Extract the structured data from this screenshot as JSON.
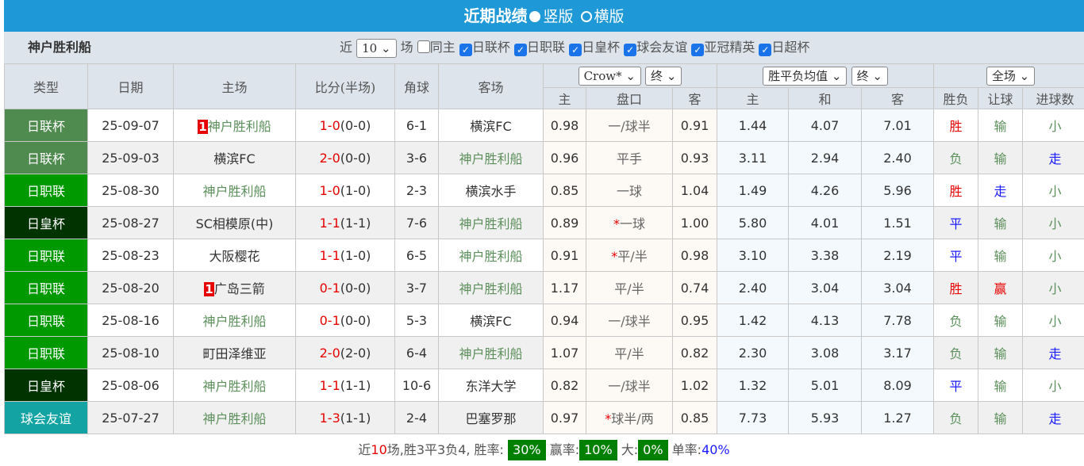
{
  "header": {
    "title": "近期战绩",
    "option_vertical": "竖版",
    "option_horizontal": "横版"
  },
  "filter": {
    "team": "神户胜利船",
    "near_label": "近",
    "count": "10",
    "games_label": "场",
    "checks": [
      {
        "label": "同主",
        "checked": false
      },
      {
        "label": "日联杯",
        "checked": true
      },
      {
        "label": "日职联",
        "checked": true
      },
      {
        "label": "日皇杯",
        "checked": true
      },
      {
        "label": "球会友谊",
        "checked": true
      },
      {
        "label": "亚冠精英",
        "checked": true
      },
      {
        "label": "日超杯",
        "checked": true
      }
    ]
  },
  "columns": {
    "type": "类型",
    "date": "日期",
    "home": "主场",
    "score": "比分(半场)",
    "corner": "角球",
    "away": "客场",
    "company_select": "Crow*",
    "final_select1": "终",
    "avg_select": "胜平负均值",
    "final_select2": "终",
    "period_select": "全场",
    "sub": [
      "主",
      "盘口",
      "客",
      "主",
      "和",
      "客",
      "胜负",
      "让球",
      "进球数"
    ]
  },
  "colors": {
    "日联杯": "#4f8a4f",
    "日职联": "#009a00",
    "日皇杯": "#003300",
    "球会友谊": "#13a3a3",
    "win": "#e60000",
    "draw": "#1a1aff",
    "loss": "#5c8f5c"
  },
  "rows": [
    {
      "type": "日联杯",
      "date": "25-09-07",
      "home": "神户胜利船",
      "home_tag": "1",
      "score": "1-0",
      "half": "(0-0)",
      "corner": "6-1",
      "away": "横滨FC",
      "o1": "0.98",
      "hcp": "一/球半",
      "star": false,
      "o2": "0.91",
      "e1": "1.44",
      "e2": "4.07",
      "e3": "7.01",
      "r": "胜",
      "rh": "输",
      "g": "小"
    },
    {
      "type": "日联杯",
      "date": "25-09-03",
      "home": "横滨FC",
      "score": "2-0",
      "half": "(0-0)",
      "corner": "3-6",
      "away": "神户胜利船",
      "o1": "0.96",
      "hcp": "平手",
      "star": false,
      "o2": "0.93",
      "e1": "3.11",
      "e2": "2.94",
      "e3": "2.40",
      "r": "负",
      "rh": "输",
      "g": "走"
    },
    {
      "type": "日职联",
      "date": "25-08-30",
      "home": "神户胜利船",
      "score": "1-0",
      "half": "(1-0)",
      "corner": "2-3",
      "away": "横滨水手",
      "o1": "0.85",
      "hcp": "一球",
      "star": false,
      "o2": "1.04",
      "e1": "1.49",
      "e2": "4.26",
      "e3": "5.96",
      "r": "胜",
      "rh": "走",
      "g": "小"
    },
    {
      "type": "日皇杯",
      "date": "25-08-27",
      "home": "SC相模原(中)",
      "score": "1-1",
      "half": "(1-1)",
      "corner": "7-6",
      "away": "神户胜利船",
      "o1": "0.89",
      "hcp": "一球",
      "star": true,
      "o2": "1.00",
      "e1": "5.80",
      "e2": "4.01",
      "e3": "1.51",
      "r": "平",
      "rh": "输",
      "g": "小"
    },
    {
      "type": "日职联",
      "date": "25-08-23",
      "home": "大阪樱花",
      "score": "1-1",
      "half": "(1-0)",
      "corner": "6-5",
      "away": "神户胜利船",
      "o1": "0.91",
      "hcp": "平/半",
      "star": true,
      "o2": "0.98",
      "e1": "3.10",
      "e2": "3.38",
      "e3": "2.19",
      "r": "平",
      "rh": "输",
      "g": "小"
    },
    {
      "type": "日职联",
      "date": "25-08-20",
      "home": "广岛三箭",
      "home_tag": "1",
      "score": "0-1",
      "half": "(0-0)",
      "corner": "3-7",
      "away": "神户胜利船",
      "o1": "1.17",
      "hcp": "平/半",
      "star": false,
      "o2": "0.74",
      "e1": "2.40",
      "e2": "3.04",
      "e3": "3.04",
      "r": "胜",
      "rh": "赢",
      "g": "小"
    },
    {
      "type": "日职联",
      "date": "25-08-16",
      "home": "神户胜利船",
      "score": "0-1",
      "half": "(0-0)",
      "corner": "5-3",
      "away": "横滨FC",
      "o1": "0.94",
      "hcp": "一/球半",
      "star": false,
      "o2": "0.95",
      "e1": "1.42",
      "e2": "4.13",
      "e3": "7.78",
      "r": "负",
      "rh": "输",
      "g": "小"
    },
    {
      "type": "日职联",
      "date": "25-08-10",
      "home": "町田泽维亚",
      "score": "2-0",
      "half": "(2-0)",
      "corner": "6-4",
      "away": "神户胜利船",
      "o1": "1.07",
      "hcp": "平/半",
      "star": false,
      "o2": "0.82",
      "e1": "2.30",
      "e2": "3.08",
      "e3": "3.17",
      "r": "负",
      "rh": "输",
      "g": "走"
    },
    {
      "type": "日皇杯",
      "date": "25-08-06",
      "home": "神户胜利船",
      "score": "1-1",
      "half": "(1-1)",
      "corner": "10-6",
      "away": "东洋大学",
      "o1": "0.82",
      "hcp": "一/球半",
      "star": false,
      "o2": "1.02",
      "e1": "1.32",
      "e2": "5.01",
      "e3": "8.09",
      "r": "平",
      "rh": "输",
      "g": "小"
    },
    {
      "type": "球会友谊",
      "date": "25-07-27",
      "home": "神户胜利船",
      "score": "1-3",
      "half": "(1-1)",
      "corner": "2-4",
      "away": "巴塞罗那",
      "o1": "0.97",
      "hcp": "球半/两",
      "star": true,
      "o2": "0.85",
      "e1": "7.73",
      "e2": "5.93",
      "e3": "1.27",
      "r": "负",
      "rh": "输",
      "g": "走"
    }
  ],
  "footer": {
    "p1": "近",
    "n": "10",
    "p2": "场,胜3平3负4, 胜率:",
    "win_rate": "30%",
    "l2": "赢率:",
    "ying_rate": "10%",
    "l3": "大:",
    "big_rate": "0%",
    "l4": "单率:",
    "odd_rate": "40%"
  }
}
